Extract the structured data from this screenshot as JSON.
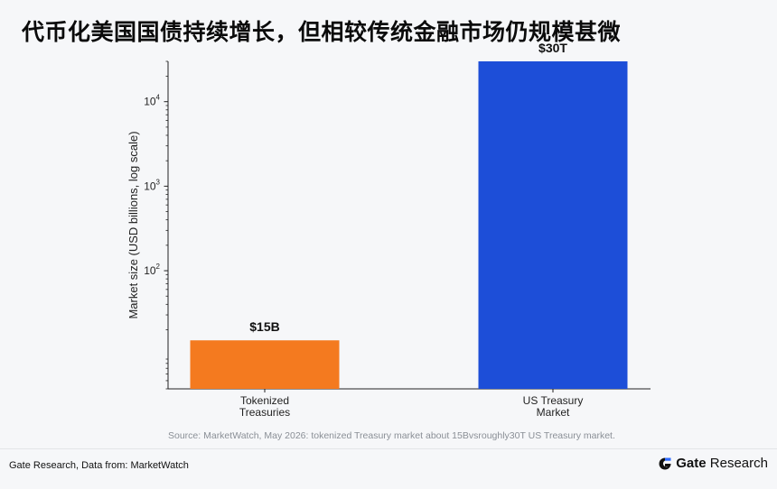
{
  "page": {
    "title": "代币化美国国债持续增长，但相较传统金融市场仍规模甚微",
    "source": "Source: MarketWatch, May 2026: tokenized Treasury market about 15Bvsroughly30T US Treasury market.",
    "footer_left": "Gate Research, Data from: MarketWatch",
    "brand_name_bold": "Gate",
    "brand_name_rest": " Research",
    "brand_icon": "gate-logo-icon"
  },
  "chart_data": {
    "type": "bar",
    "categories": [
      "Tokenized\nTreasuries",
      "US Treasury\nMarket"
    ],
    "values": [
      15,
      30000
    ],
    "value_labels": [
      "$15B",
      "$30T"
    ],
    "colors": [
      "#f47a1f",
      "#1d4ed8"
    ],
    "ylabel": "Market size (USD billions, log scale)",
    "yscale": "log",
    "ylim": [
      4,
      30000
    ],
    "yticks": [
      100,
      1000,
      10000
    ],
    "ytick_labels": [
      {
        "base": "10",
        "exp": "2"
      },
      {
        "base": "10",
        "exp": "3"
      },
      {
        "base": "10",
        "exp": "4"
      }
    ],
    "grid": false
  }
}
